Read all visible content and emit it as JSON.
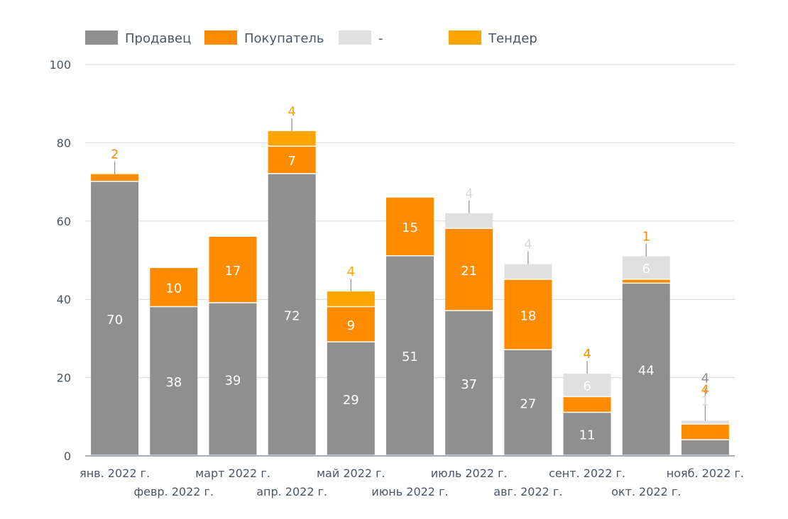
{
  "chart_data": {
    "type": "bar",
    "stacked": true,
    "categories": [
      "янв. 2022 г.",
      "февр. 2022 г.",
      "март 2022 г.",
      "апр. 2022 г.",
      "май 2022 г.",
      "июнь 2022 г.",
      "июль 2022 г.",
      "авг. 2022 г.",
      "сент. 2022 г.",
      "окт. 2022 г.",
      "нояб. 2022 г."
    ],
    "series": [
      {
        "name": "Продавец",
        "color": "#8f8f8f",
        "values": [
          70,
          38,
          39,
          72,
          29,
          51,
          37,
          27,
          11,
          44,
          4
        ]
      },
      {
        "name": "Покупатель",
        "color": "#ff8c00",
        "values": [
          2,
          10,
          17,
          7,
          9,
          15,
          21,
          18,
          4,
          1,
          4
        ]
      },
      {
        "name": "-",
        "color": "#e0e0e0",
        "values": [
          0,
          0,
          0,
          0,
          0,
          0,
          4,
          4,
          6,
          6,
          1
        ]
      },
      {
        "name": "Тендер",
        "color": "#ffa500",
        "values": [
          0,
          0,
          0,
          4,
          4,
          0,
          0,
          0,
          0,
          0,
          0
        ]
      }
    ],
    "yticks": [
      0,
      20,
      40,
      60,
      80,
      100
    ],
    "ylim": [
      0,
      100
    ],
    "grid": true,
    "legend": "top-left"
  }
}
